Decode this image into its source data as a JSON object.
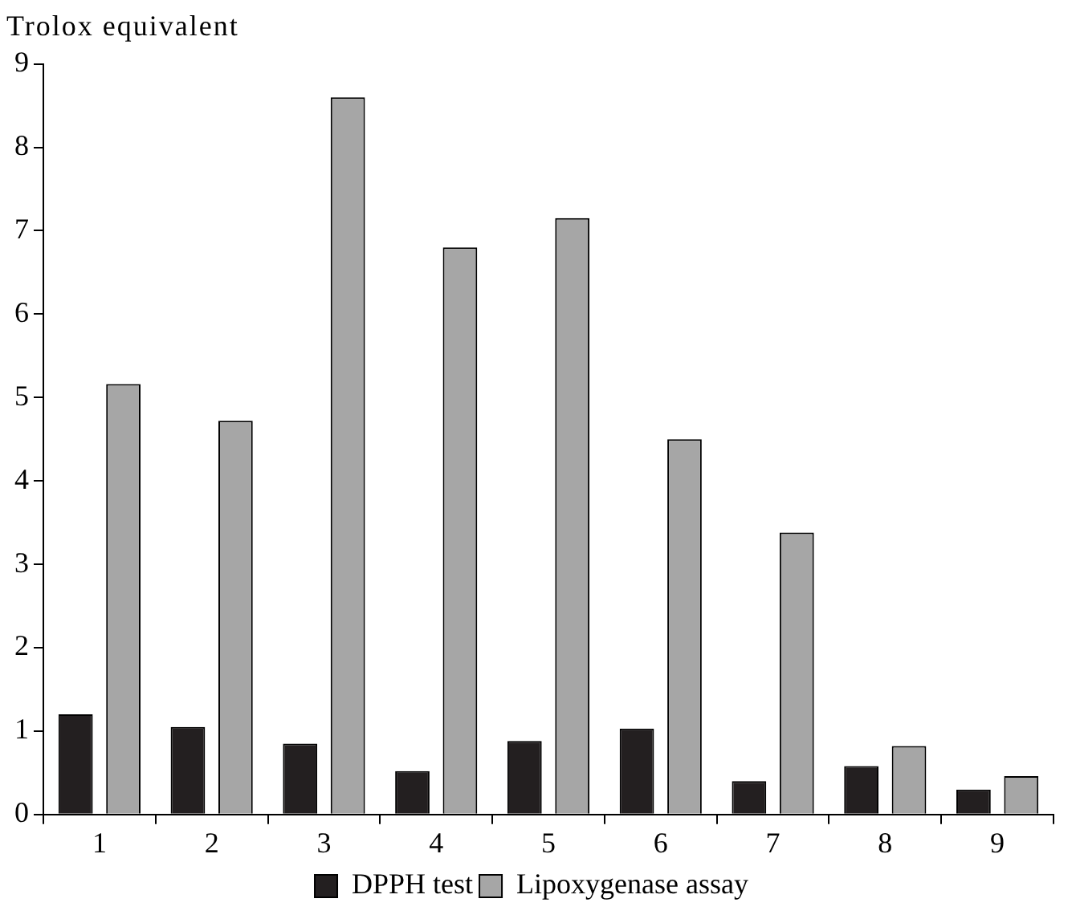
{
  "chart_data": {
    "type": "bar",
    "ylabel": "Trolox equivalent",
    "categories": [
      "1",
      "2",
      "3",
      "4",
      "5",
      "6",
      "7",
      "8",
      "9"
    ],
    "series": [
      {
        "name": "DPPH test",
        "color": "#231f20",
        "values": [
          1.2,
          1.05,
          0.85,
          0.52,
          0.88,
          1.03,
          0.4,
          0.58,
          0.3
        ]
      },
      {
        "name": "Lipoxygenase assay",
        "color": "#a6a6a6",
        "values": [
          5.16,
          4.72,
          8.6,
          6.8,
          7.15,
          4.5,
          3.38,
          0.82,
          0.46
        ]
      }
    ],
    "ylim": [
      0,
      9
    ],
    "yticks": [
      0,
      1,
      2,
      3,
      4,
      5,
      6,
      7,
      8,
      9
    ],
    "legend": "bottom"
  }
}
